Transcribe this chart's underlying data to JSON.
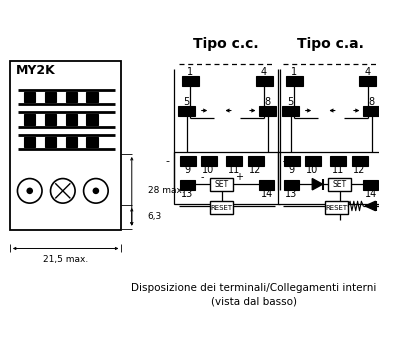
{
  "label_my2k": "MY2K",
  "label_cc": "Tipo c.c.",
  "label_ca": "Tipo c.a.",
  "dim_28": "28 max.",
  "dim_63": "6,3",
  "dim_215": "21,5 max.",
  "bottom1": "Disposizione dei terminali/Collegamenti interni",
  "bottom2": "(vista dal basso)"
}
